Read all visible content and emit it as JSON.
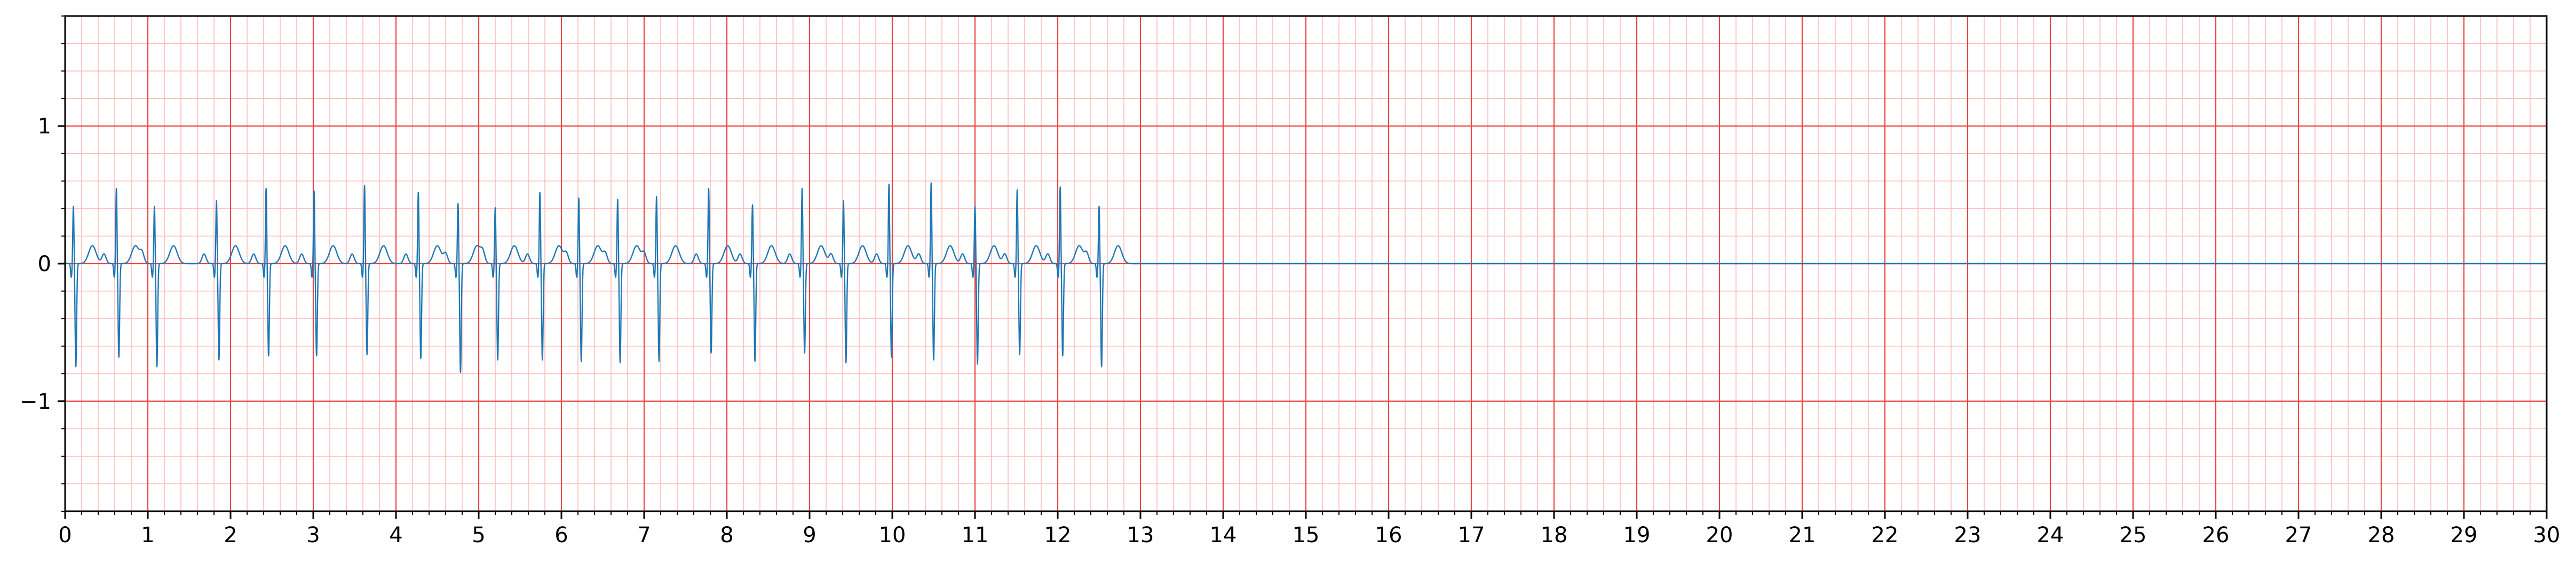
{
  "chart_data": {
    "type": "line",
    "title": "",
    "xlabel": "",
    "ylabel": "",
    "xlim": [
      0,
      30
    ],
    "ylim": [
      -1.8,
      1.8
    ],
    "x_ticks": [
      0,
      1,
      2,
      3,
      4,
      5,
      6,
      7,
      8,
      9,
      10,
      11,
      12,
      13,
      14,
      15,
      16,
      17,
      18,
      19,
      20,
      21,
      22,
      23,
      24,
      25,
      26,
      27,
      28,
      29,
      30
    ],
    "x_tick_labels": [
      "0",
      "1",
      "2",
      "3",
      "4",
      "5",
      "6",
      "7",
      "8",
      "9",
      "10",
      "11",
      "12",
      "13",
      "14",
      "15",
      "16",
      "17",
      "18",
      "19",
      "20",
      "21",
      "22",
      "23",
      "24",
      "25",
      "26",
      "27",
      "28",
      "29",
      "30"
    ],
    "y_ticks": [
      -1,
      0,
      1
    ],
    "y_tick_labels": [
      "−1",
      "0",
      "1"
    ],
    "grid": {
      "major_x": 1,
      "major_y": 1,
      "minor_x": 0.2,
      "minor_y": 0.2,
      "major_color": "#ee4444",
      "minor_color": "#ffbbbb"
    },
    "series": [
      {
        "color": "#1f77b4",
        "signal_end": 13.0,
        "flat_to": 30,
        "beats": [
          {
            "t": 0.1,
            "r": 0.42,
            "s": -0.75
          },
          {
            "t": 0.62,
            "r": 0.55,
            "s": -0.68
          },
          {
            "t": 1.08,
            "r": 0.42,
            "s": -0.75
          },
          {
            "t": 1.83,
            "r": 0.46,
            "s": -0.7
          },
          {
            "t": 2.43,
            "r": 0.55,
            "s": -0.67
          },
          {
            "t": 3.01,
            "r": 0.53,
            "s": -0.67
          },
          {
            "t": 3.62,
            "r": 0.57,
            "s": -0.66
          },
          {
            "t": 4.27,
            "r": 0.52,
            "s": -0.69
          },
          {
            "t": 4.75,
            "r": 0.44,
            "s": -0.79
          },
          {
            "t": 5.2,
            "r": 0.41,
            "s": -0.7
          },
          {
            "t": 5.74,
            "r": 0.52,
            "s": -0.7
          },
          {
            "t": 6.21,
            "r": 0.48,
            "s": -0.71
          },
          {
            "t": 6.68,
            "r": 0.47,
            "s": -0.72
          },
          {
            "t": 7.15,
            "r": 0.49,
            "s": -0.71
          },
          {
            "t": 7.78,
            "r": 0.55,
            "s": -0.65
          },
          {
            "t": 8.31,
            "r": 0.43,
            "s": -0.71
          },
          {
            "t": 8.91,
            "r": 0.55,
            "s": -0.65
          },
          {
            "t": 9.41,
            "r": 0.46,
            "s": -0.72
          },
          {
            "t": 9.96,
            "r": 0.58,
            "s": -0.68
          },
          {
            "t": 10.47,
            "r": 0.59,
            "s": -0.7
          },
          {
            "t": 11.0,
            "r": 0.42,
            "s": -0.73
          },
          {
            "t": 11.51,
            "r": 0.54,
            "s": -0.66
          },
          {
            "t": 12.03,
            "r": 0.56,
            "s": -0.67
          },
          {
            "t": 12.5,
            "r": 0.42,
            "s": -0.75
          }
        ]
      }
    ]
  }
}
